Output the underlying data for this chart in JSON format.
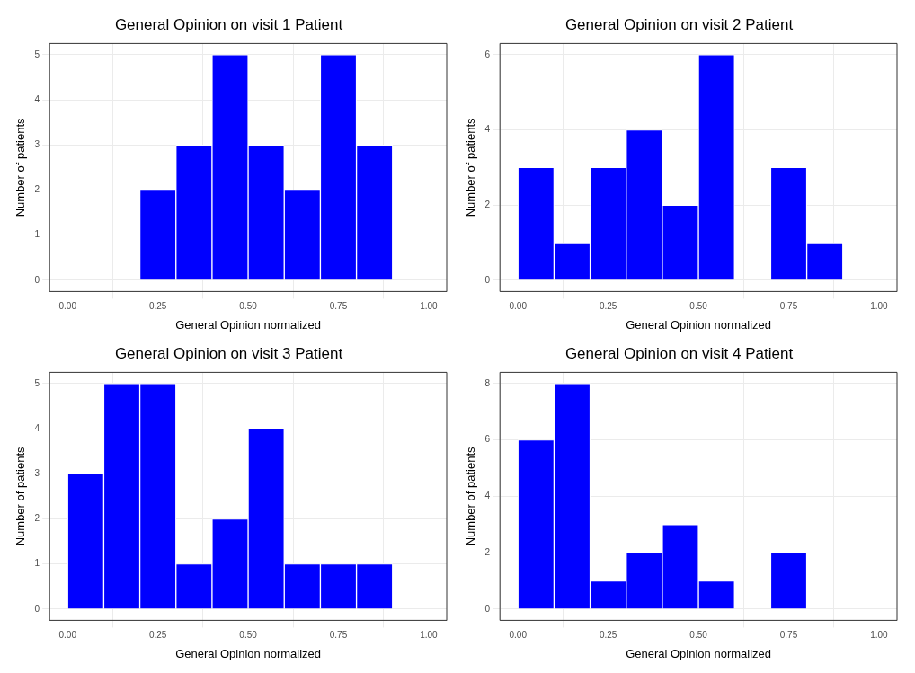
{
  "chart_data": [
    {
      "type": "histogram",
      "title": "General Opinion on visit 1 Patient",
      "xlabel": "General Opinion normalized",
      "ylabel": "Number of patients",
      "bins": [
        0.2,
        0.3,
        0.4,
        0.5,
        0.6,
        0.7,
        0.8,
        0.9
      ],
      "values": [
        2,
        3,
        5,
        3,
        2,
        5,
        3
      ],
      "color": "#0000ff",
      "xlim": [
        -0.05,
        1.05
      ],
      "xticks": [
        {
          "value": 0,
          "label": "0.00"
        },
        {
          "value": 0.25,
          "label": "0.25"
        },
        {
          "value": 0.5,
          "label": "0.50"
        },
        {
          "value": 0.75,
          "label": "0.75"
        },
        {
          "value": 1,
          "label": "1.00"
        }
      ],
      "ylim": [
        -0.25,
        5.25
      ],
      "yticks": [
        0,
        1,
        2,
        3,
        4,
        5
      ],
      "grid": true
    },
    {
      "type": "histogram",
      "title": "General Opinion on visit 2 Patient",
      "xlabel": "General Opinion normalized",
      "ylabel": "Number of patients",
      "bins": [
        0,
        0.1,
        0.2,
        0.3,
        0.4,
        0.5,
        0.6,
        0.7,
        0.8,
        0.9
      ],
      "values": [
        3,
        1,
        3,
        4,
        2,
        6,
        0,
        3,
        1
      ],
      "color": "#0000ff",
      "xlim": [
        -0.05,
        1.05
      ],
      "xticks": [
        {
          "value": 0,
          "label": "0.00"
        },
        {
          "value": 0.25,
          "label": "0.25"
        },
        {
          "value": 0.5,
          "label": "0.50"
        },
        {
          "value": 0.75,
          "label": "0.75"
        },
        {
          "value": 1,
          "label": "1.00"
        }
      ],
      "ylim": [
        -0.3,
        6.3
      ],
      "yticks": [
        0,
        2,
        4,
        6
      ],
      "grid": true
    },
    {
      "type": "histogram",
      "title": "General Opinion on visit 3 Patient",
      "xlabel": "General Opinion normalized",
      "ylabel": "Number of patients",
      "bins": [
        0,
        0.1,
        0.2,
        0.3,
        0.4,
        0.5,
        0.6,
        0.7,
        0.8,
        0.9
      ],
      "values": [
        3,
        5,
        5,
        1,
        2,
        4,
        1,
        1,
        1
      ],
      "color": "#0000ff",
      "xlim": [
        -0.05,
        1.05
      ],
      "xticks": [
        {
          "value": 0,
          "label": "0.00"
        },
        {
          "value": 0.25,
          "label": "0.25"
        },
        {
          "value": 0.5,
          "label": "0.50"
        },
        {
          "value": 0.75,
          "label": "0.75"
        },
        {
          "value": 1,
          "label": "1.00"
        }
      ],
      "ylim": [
        -0.25,
        5.25
      ],
      "yticks": [
        0,
        1,
        2,
        3,
        4,
        5
      ],
      "grid": true
    },
    {
      "type": "histogram",
      "title": "General Opinion on visit 4 Patient",
      "xlabel": "General Opinion normalized",
      "ylabel": "Number of patients",
      "bins": [
        0,
        0.1,
        0.2,
        0.3,
        0.4,
        0.5,
        0.6,
        0.7,
        0.8
      ],
      "values": [
        6,
        8,
        1,
        2,
        3,
        1,
        0,
        2
      ],
      "color": "#0000ff",
      "xlim": [
        -0.05,
        1.05
      ],
      "xticks": [
        {
          "value": 0,
          "label": "0.00"
        },
        {
          "value": 0.25,
          "label": "0.25"
        },
        {
          "value": 0.5,
          "label": "0.50"
        },
        {
          "value": 0.75,
          "label": "0.75"
        },
        {
          "value": 1,
          "label": "1.00"
        }
      ],
      "ylim": [
        -0.4,
        8.4
      ],
      "yticks": [
        0,
        2,
        4,
        6,
        8
      ],
      "grid": true
    }
  ]
}
